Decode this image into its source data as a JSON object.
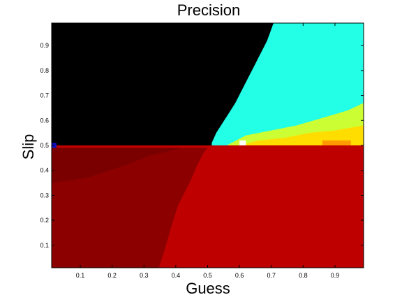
{
  "chart_data": {
    "type": "heatmap",
    "title": "Precision",
    "xlabel": "Guess",
    "ylabel": "Slip",
    "xlim": [
      0.01,
      0.99
    ],
    "ylim": [
      0.01,
      0.99
    ],
    "xticks": [
      0.1,
      0.2,
      0.3,
      0.4,
      0.5,
      0.6,
      0.7,
      0.8,
      0.9
    ],
    "yticks": [
      0.1,
      0.2,
      0.3,
      0.4,
      0.5,
      0.6,
      0.7,
      0.8,
      0.9
    ],
    "xtick_labels": [
      "0.1",
      "0.2",
      "0.3",
      "0.4",
      "0.5",
      "0.6",
      "0.7",
      "0.8",
      "0.9"
    ],
    "ytick_labels": [
      "0.1",
      "0.2",
      "0.3",
      "0.4",
      "0.5",
      "0.6",
      "0.7",
      "0.8",
      "0.9"
    ],
    "colormap": "jet",
    "grid": false,
    "regions": [
      {
        "color": "#000000",
        "description_value": "black region (upper left, slip > 0.5 left of boundary)"
      },
      {
        "color": "#22ffe6",
        "description_value": "cyan region (upper right, slip > 0.5)"
      },
      {
        "color": "#ccff33",
        "description_value": "yellow-green band above slip 0.5"
      },
      {
        "color": "#ffdd00",
        "description_value": "yellow/orange band just above slip 0.5"
      },
      {
        "color": "#bf0000",
        "description_value": "red region (slip < 0.5, guess > boundary)"
      },
      {
        "color": "#8c0000",
        "description_value": "dark red region (slip < 0.5, low guess)"
      }
    ],
    "boundaries": {
      "upper_left": [
        [
          0.513,
          0.51
        ],
        [
          0.527,
          0.55
        ],
        [
          0.547,
          0.59
        ],
        [
          0.567,
          0.63
        ],
        [
          0.587,
          0.67
        ],
        [
          0.607,
          0.72
        ],
        [
          0.627,
          0.77
        ],
        [
          0.647,
          0.82
        ],
        [
          0.667,
          0.87
        ],
        [
          0.687,
          0.92
        ],
        [
          0.707,
          0.99
        ]
      ],
      "lower_left": [
        [
          0.347,
          0.01
        ],
        [
          0.367,
          0.09
        ],
        [
          0.387,
          0.18
        ],
        [
          0.407,
          0.26
        ],
        [
          0.427,
          0.31
        ],
        [
          0.447,
          0.36
        ],
        [
          0.467,
          0.42
        ],
        [
          0.487,
          0.47
        ],
        [
          0.5,
          0.49
        ]
      ]
    }
  }
}
